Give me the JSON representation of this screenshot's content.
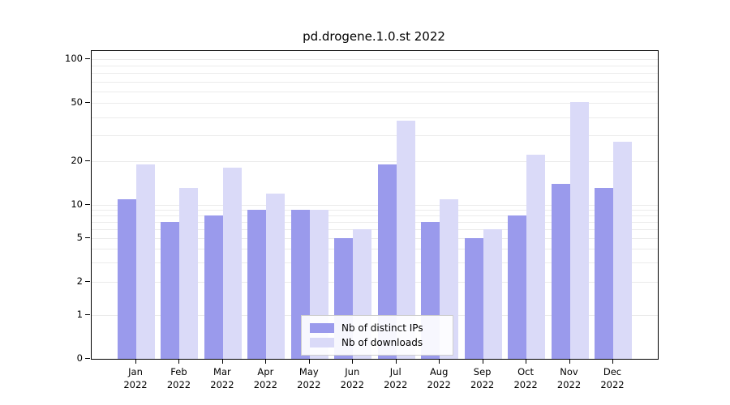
{
  "chart_data": {
    "type": "bar",
    "title": "pd.drogene.1.0.st 2022",
    "categories": [
      "Jan",
      "Feb",
      "Mar",
      "Apr",
      "May",
      "Jun",
      "Jul",
      "Aug",
      "Sep",
      "Oct",
      "Nov",
      "Dec"
    ],
    "year_label": "2022",
    "series": [
      {
        "name": "Nb of distinct IPs",
        "color": "#9a9aec",
        "values": [
          11,
          7,
          8,
          9,
          9,
          5,
          19,
          7,
          5,
          8,
          14,
          13
        ]
      },
      {
        "name": "Nb of downloads",
        "color": "#dadaf8",
        "values": [
          19,
          13,
          18,
          12,
          9,
          6,
          38,
          11,
          6,
          22,
          51,
          27
        ]
      }
    ],
    "y_ticks": [
      0,
      1,
      2,
      5,
      10,
      20,
      50,
      100
    ],
    "ylim": [
      0,
      100
    ],
    "y_scale": "symlog",
    "grid": true,
    "legend_position": "bottom-center"
  }
}
